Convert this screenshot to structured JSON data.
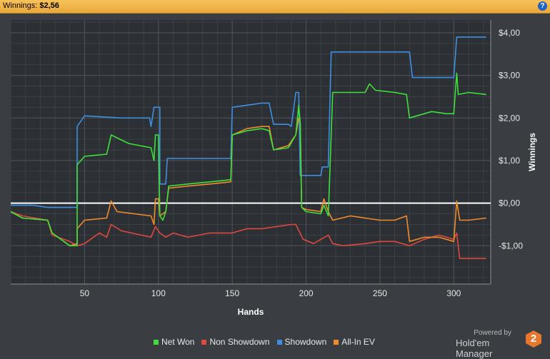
{
  "header": {
    "winnings_label": "Winnings:",
    "winnings_value": "$2,56",
    "help_icon": "question-mark-icon"
  },
  "colors": {
    "net_won": "#3ee03a",
    "non_showdown": "#e0483e",
    "showdown": "#3e8fe0",
    "allin_ev": "#f08c2c",
    "zero_line": "#ffffff"
  },
  "branding": {
    "powered_by": "Powered by",
    "name": "Hold'em Manager",
    "logo_text": "2"
  },
  "chart_data": {
    "type": "line",
    "xlabel": "Hands",
    "ylabel": "Winnings",
    "xlim": [
      0,
      325
    ],
    "ylim": [
      -1.9,
      4.3
    ],
    "x_ticks": [
      50,
      100,
      150,
      200,
      250,
      300
    ],
    "y_ticks": [
      {
        "value": 4,
        "label": "$4,00"
      },
      {
        "value": 3,
        "label": "$3,00"
      },
      {
        "value": 2,
        "label": "$2,00"
      },
      {
        "value": 1,
        "label": "$1,00"
      },
      {
        "value": 0,
        "label": "$0,00"
      },
      {
        "value": -1,
        "label": "-$1,00"
      }
    ],
    "grid": true,
    "legend_position": "bottom",
    "series": [
      {
        "name": "Net Won",
        "color": "#3ee03a",
        "points": [
          [
            0,
            -0.2
          ],
          [
            8,
            -0.35
          ],
          [
            25,
            -0.4
          ],
          [
            28,
            -0.7
          ],
          [
            40,
            -1.0
          ],
          [
            45,
            -1.0
          ],
          [
            45,
            0.9
          ],
          [
            50,
            1.1
          ],
          [
            65,
            1.15
          ],
          [
            68,
            1.6
          ],
          [
            80,
            1.4
          ],
          [
            95,
            1.3
          ],
          [
            97,
            1.0
          ],
          [
            98,
            1.6
          ],
          [
            100,
            1.6
          ],
          [
            101,
            -0.3
          ],
          [
            103,
            -0.4
          ],
          [
            105,
            -0.2
          ],
          [
            107,
            0.4
          ],
          [
            120,
            0.45
          ],
          [
            135,
            0.5
          ],
          [
            149,
            0.55
          ],
          [
            150,
            1.6
          ],
          [
            160,
            1.7
          ],
          [
            170,
            1.75
          ],
          [
            175,
            1.7
          ],
          [
            178,
            1.25
          ],
          [
            188,
            1.3
          ],
          [
            193,
            1.6
          ],
          [
            195,
            2.3
          ],
          [
            196,
            1.9
          ],
          [
            197,
            -0.1
          ],
          [
            200,
            -0.2
          ],
          [
            210,
            -0.25
          ],
          [
            212,
            -0.05
          ],
          [
            215,
            -0.3
          ],
          [
            218,
            2.6
          ],
          [
            240,
            2.6
          ],
          [
            243,
            2.8
          ],
          [
            247,
            2.65
          ],
          [
            260,
            2.6
          ],
          [
            268,
            2.55
          ],
          [
            270,
            2.0
          ],
          [
            280,
            2.1
          ],
          [
            285,
            2.15
          ],
          [
            295,
            2.1
          ],
          [
            300,
            2.1
          ],
          [
            302,
            3.05
          ],
          [
            303,
            2.55
          ],
          [
            310,
            2.6
          ],
          [
            322,
            2.55
          ]
        ]
      },
      {
        "name": "Non Showdown",
        "color": "#e0483e",
        "points": [
          [
            0,
            -0.2
          ],
          [
            8,
            -0.3
          ],
          [
            25,
            -0.4
          ],
          [
            28,
            -0.75
          ],
          [
            40,
            -0.9
          ],
          [
            45,
            -1.0
          ],
          [
            50,
            -0.95
          ],
          [
            60,
            -0.7
          ],
          [
            65,
            -0.8
          ],
          [
            68,
            -0.5
          ],
          [
            75,
            -0.65
          ],
          [
            95,
            -0.8
          ],
          [
            98,
            -0.55
          ],
          [
            101,
            -0.7
          ],
          [
            105,
            -0.8
          ],
          [
            110,
            -0.7
          ],
          [
            120,
            -0.8
          ],
          [
            135,
            -0.7
          ],
          [
            150,
            -0.7
          ],
          [
            160,
            -0.6
          ],
          [
            170,
            -0.6
          ],
          [
            180,
            -0.55
          ],
          [
            190,
            -0.5
          ],
          [
            193,
            -0.5
          ],
          [
            198,
            -0.85
          ],
          [
            205,
            -0.95
          ],
          [
            210,
            -0.85
          ],
          [
            215,
            -0.75
          ],
          [
            218,
            -0.95
          ],
          [
            225,
            -1.0
          ],
          [
            240,
            -0.95
          ],
          [
            250,
            -0.9
          ],
          [
            260,
            -0.9
          ],
          [
            270,
            -1.0
          ],
          [
            280,
            -0.85
          ],
          [
            290,
            -0.75
          ],
          [
            300,
            -0.85
          ],
          [
            302,
            -0.7
          ],
          [
            304,
            -1.3
          ],
          [
            310,
            -1.3
          ],
          [
            322,
            -1.3
          ]
        ]
      },
      {
        "name": "Showdown",
        "color": "#3e8fe0",
        "points": [
          [
            0,
            -0.05
          ],
          [
            15,
            -0.05
          ],
          [
            25,
            -0.1
          ],
          [
            45,
            -0.1
          ],
          [
            45,
            1.8
          ],
          [
            50,
            2.05
          ],
          [
            75,
            2.0
          ],
          [
            94,
            2.0
          ],
          [
            95,
            1.8
          ],
          [
            97,
            2.25
          ],
          [
            101,
            2.25
          ],
          [
            101,
            0.45
          ],
          [
            105,
            0.45
          ],
          [
            106,
            1.05
          ],
          [
            149,
            1.05
          ],
          [
            150,
            2.25
          ],
          [
            160,
            2.3
          ],
          [
            170,
            2.35
          ],
          [
            175,
            2.35
          ],
          [
            178,
            1.85
          ],
          [
            188,
            1.85
          ],
          [
            190,
            1.8
          ],
          [
            193,
            2.6
          ],
          [
            195,
            2.6
          ],
          [
            196,
            0.65
          ],
          [
            210,
            0.65
          ],
          [
            211,
            0.85
          ],
          [
            215,
            0.85
          ],
          [
            217,
            3.55
          ],
          [
            270,
            3.55
          ],
          [
            272,
            2.95
          ],
          [
            300,
            2.95
          ],
          [
            302,
            3.9
          ],
          [
            322,
            3.9
          ]
        ]
      },
      {
        "name": "All-In EV",
        "color": "#f08c2c",
        "points": [
          [
            0,
            -0.2
          ],
          [
            8,
            -0.35
          ],
          [
            25,
            -0.4
          ],
          [
            28,
            -0.7
          ],
          [
            40,
            -1.0
          ],
          [
            45,
            -0.95
          ],
          [
            45,
            -0.6
          ],
          [
            50,
            -0.4
          ],
          [
            65,
            -0.35
          ],
          [
            68,
            0.05
          ],
          [
            72,
            -0.2
          ],
          [
            95,
            -0.3
          ],
          [
            97,
            -0.5
          ],
          [
            98,
            0.1
          ],
          [
            100,
            0.1
          ],
          [
            101,
            -0.3
          ],
          [
            105,
            -0.2
          ],
          [
            107,
            0.35
          ],
          [
            120,
            0.4
          ],
          [
            135,
            0.45
          ],
          [
            149,
            0.5
          ],
          [
            150,
            1.6
          ],
          [
            160,
            1.75
          ],
          [
            170,
            1.8
          ],
          [
            175,
            1.8
          ],
          [
            178,
            1.25
          ],
          [
            188,
            1.35
          ],
          [
            193,
            1.6
          ],
          [
            195,
            2.0
          ],
          [
            196,
            1.9
          ],
          [
            197,
            -0.1
          ],
          [
            200,
            -0.15
          ],
          [
            210,
            -0.2
          ],
          [
            212,
            0.1
          ],
          [
            215,
            -0.2
          ],
          [
            218,
            -0.4
          ],
          [
            230,
            -0.3
          ],
          [
            240,
            -0.35
          ],
          [
            250,
            -0.4
          ],
          [
            260,
            -0.4
          ],
          [
            268,
            -0.3
          ],
          [
            270,
            -0.9
          ],
          [
            280,
            -0.8
          ],
          [
            290,
            -0.8
          ],
          [
            300,
            -0.9
          ],
          [
            302,
            0.05
          ],
          [
            304,
            -0.4
          ],
          [
            310,
            -0.4
          ],
          [
            322,
            -0.35
          ]
        ]
      }
    ]
  }
}
